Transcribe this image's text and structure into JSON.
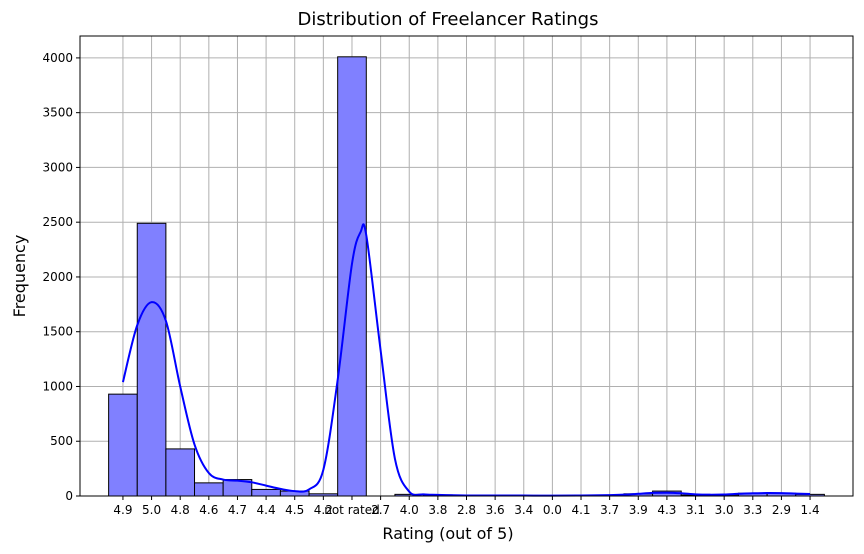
{
  "chart_data": {
    "type": "bar",
    "title": "Distribution of Freelancer Ratings",
    "xlabel": "Rating (out of 5)",
    "ylabel": "Frequency",
    "ylim": [
      0,
      4200
    ],
    "yticks": [
      0,
      500,
      1000,
      1500,
      2000,
      2500,
      3000,
      3500,
      4000
    ],
    "grid": true,
    "categories": [
      "4.9",
      "5.0",
      "4.8",
      "4.6",
      "4.7",
      "4.4",
      "4.5",
      "4.2",
      "not rated",
      "2.7",
      "4.0",
      "3.8",
      "2.8",
      "3.6",
      "3.4",
      "0.0",
      "4.1",
      "3.7",
      "3.9",
      "4.3",
      "3.1",
      "3.0",
      "3.3",
      "2.9",
      "1.4"
    ],
    "bins": [
      {
        "x0": -0.5,
        "x1": 0.5,
        "value": 930
      },
      {
        "x0": 0.5,
        "x1": 1.5,
        "value": 2490
      },
      {
        "x0": 1.5,
        "x1": 2.5,
        "value": 430
      },
      {
        "x0": 2.5,
        "x1": 3.5,
        "value": 120
      },
      {
        "x0": 3.5,
        "x1": 4.5,
        "value": 150
      },
      {
        "x0": 4.5,
        "x1": 5.5,
        "value": 60
      },
      {
        "x0": 5.5,
        "x1": 6.5,
        "value": 45
      },
      {
        "x0": 6.5,
        "x1": 7.5,
        "value": 20
      },
      {
        "x0": 7.5,
        "x1": 8.5,
        "value": 4010
      },
      {
        "x0": 8.5,
        "x1": 9.5,
        "value": 0
      },
      {
        "x0": 9.5,
        "x1": 10.5,
        "value": 15
      },
      {
        "x0": 10.5,
        "x1": 11.5,
        "value": 10
      },
      {
        "x0": 11.5,
        "x1": 12.5,
        "value": 5
      },
      {
        "x0": 12.5,
        "x1": 13.5,
        "value": 5
      },
      {
        "x0": 13.5,
        "x1": 14.5,
        "value": 5
      },
      {
        "x0": 14.5,
        "x1": 15.5,
        "value": 3
      },
      {
        "x0": 15.5,
        "x1": 16.5,
        "value": 5
      },
      {
        "x0": 16.5,
        "x1": 17.5,
        "value": 8
      },
      {
        "x0": 17.5,
        "x1": 18.5,
        "value": 20
      },
      {
        "x0": 18.5,
        "x1": 19.5,
        "value": 45
      },
      {
        "x0": 19.5,
        "x1": 20.5,
        "value": 8
      },
      {
        "x0": 20.5,
        "x1": 21.5,
        "value": 10
      },
      {
        "x0": 21.5,
        "x1": 22.5,
        "value": 25
      },
      {
        "x0": 22.5,
        "x1": 23.5,
        "value": 25
      },
      {
        "x0": 23.5,
        "x1": 24.5,
        "value": 15
      }
    ],
    "kde": [
      [
        0,
        1040
      ],
      [
        0.5,
        1560
      ],
      [
        1,
        1770
      ],
      [
        1.5,
        1600
      ],
      [
        2,
        1000
      ],
      [
        2.5,
        470
      ],
      [
        3,
        210
      ],
      [
        3.5,
        150
      ],
      [
        4,
        140
      ],
      [
        4.5,
        125
      ],
      [
        5,
        95
      ],
      [
        5.5,
        65
      ],
      [
        6,
        45
      ],
      [
        6.5,
        60
      ],
      [
        7,
        240
      ],
      [
        7.5,
        1060
      ],
      [
        8,
        2120
      ],
      [
        8.3,
        2410
      ],
      [
        8.5,
        2380
      ],
      [
        9,
        1330
      ],
      [
        9.5,
        340
      ],
      [
        10,
        40
      ],
      [
        10.5,
        15
      ],
      [
        11,
        10
      ],
      [
        12,
        5
      ],
      [
        13,
        5
      ],
      [
        14,
        4
      ],
      [
        15,
        3
      ],
      [
        16,
        5
      ],
      [
        17,
        8
      ],
      [
        17.5,
        12
      ],
      [
        18,
        20
      ],
      [
        18.5,
        28
      ],
      [
        19,
        30
      ],
      [
        19.5,
        25
      ],
      [
        20,
        15
      ],
      [
        20.5,
        12
      ],
      [
        21,
        14
      ],
      [
        21.5,
        20
      ],
      [
        22,
        25
      ],
      [
        22.5,
        27
      ],
      [
        23,
        26
      ],
      [
        23.5,
        22
      ],
      [
        24,
        18
      ]
    ],
    "colors": {
      "bar_fill": "#8080ff",
      "kde_line": "#0000ff"
    }
  }
}
